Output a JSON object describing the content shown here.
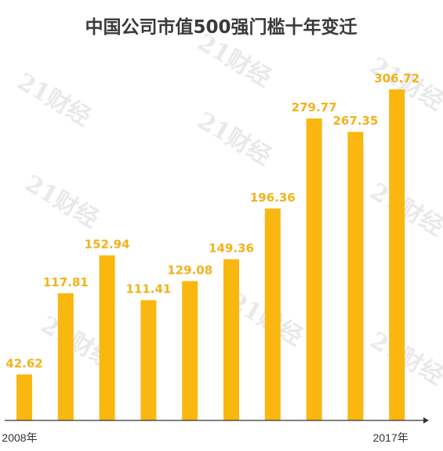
{
  "watermark": "21财经",
  "colors": {
    "bar": "#F9B70F",
    "label": "#F2B21B",
    "title": "#3a3a3a",
    "axis": "#333333",
    "watermark": "#e9e9e9"
  },
  "chart_data": {
    "type": "bar",
    "title": "中国公司市值500强门槛十年变迁",
    "xlabel": "",
    "ylabel": "",
    "categories": [
      "2008年",
      "",
      "",
      "",
      "",
      "",
      "",
      "",
      "",
      "2017年"
    ],
    "values": [
      42.62,
      117.81,
      152.94,
      111.41,
      129.08,
      149.36,
      196.36,
      279.77,
      267.35,
      306.72
    ],
    "value_labels": [
      "42.62",
      "117.81",
      "152.94",
      "111.41",
      "129.08",
      "149.36",
      "196.36",
      "279.77",
      "267.35",
      "306.72"
    ],
    "ylim": [
      0,
      320
    ],
    "grid": false,
    "legend": "none"
  }
}
